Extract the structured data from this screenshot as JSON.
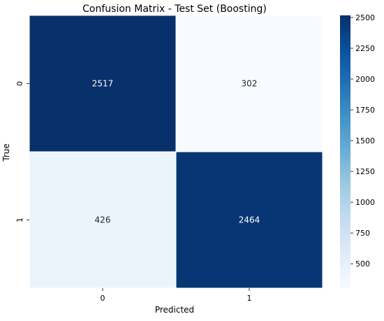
{
  "chart_data": {
    "type": "heatmap",
    "title": "Confusion Matrix - Test Set (Boosting)",
    "xlabel": "Predicted",
    "ylabel": "True",
    "x_categories": [
      "0",
      "1"
    ],
    "y_categories": [
      "0",
      "1"
    ],
    "values": [
      [
        2517,
        302
      ],
      [
        426,
        2464
      ]
    ],
    "colormap": "Blues",
    "colorbar": {
      "range": [
        302,
        2517
      ],
      "ticks": [
        500,
        750,
        1000,
        1250,
        1500,
        1750,
        2000,
        2250,
        2500
      ]
    },
    "colors": {
      "low": "#f7fbff",
      "high": "#08306b",
      "label_dark": "#262626",
      "label_light": "#ffffff"
    }
  }
}
